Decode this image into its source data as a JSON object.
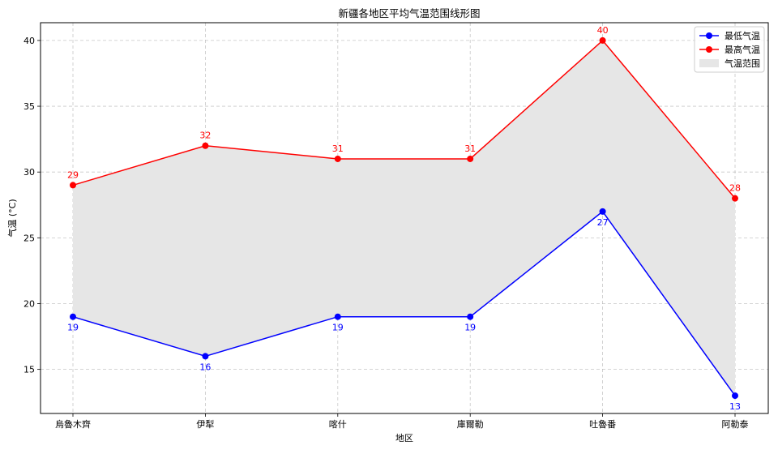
{
  "chart_data": {
    "type": "line",
    "title": "新疆各地区平均气温范围线形图",
    "xlabel": "地区",
    "ylabel": "气温 (°C)",
    "categories": [
      "烏魯木齊",
      "伊犁",
      "喀什",
      "庫爾勒",
      "吐魯番",
      "阿勒泰"
    ],
    "series": [
      {
        "name": "最低气温",
        "values": [
          19,
          16,
          19,
          19,
          27,
          13
        ],
        "color": "#0000ff",
        "label_position": "below"
      },
      {
        "name": "最高气温",
        "values": [
          29,
          32,
          31,
          31,
          40,
          28
        ],
        "color": "#ff0000",
        "label_position": "above"
      }
    ],
    "fill": {
      "name": "气温范围",
      "color": "#e6e6e6",
      "between": [
        "最低气温",
        "最高气温"
      ]
    },
    "ylim": [
      11.65,
      41.35
    ],
    "yticks": [
      15,
      20,
      25,
      30,
      35,
      40
    ],
    "grid": true,
    "legend": "top-right"
  }
}
